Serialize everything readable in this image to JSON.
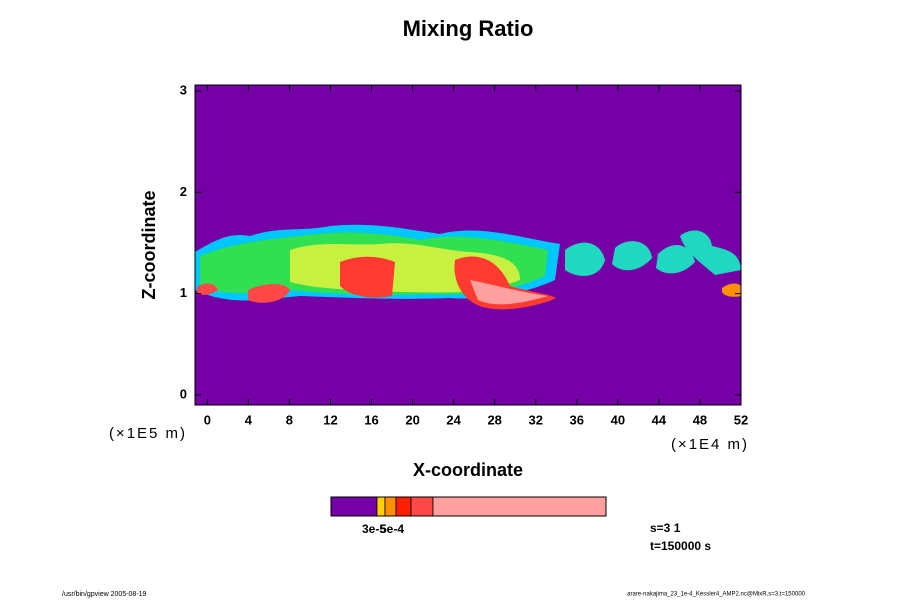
{
  "chart_data": {
    "type": "contour",
    "title": "Mixing Ratio",
    "x_label": "X-coordinate",
    "y_label": "Z-coordinate",
    "x_unit": "(×1E4 m)",
    "y_unit": "(×1E5 m)",
    "xlim": [
      -1.2,
      52
    ],
    "ylim": [
      -0.1,
      3.06
    ],
    "xticks": [
      0,
      4,
      8,
      12,
      16,
      20,
      24,
      28,
      32,
      36,
      40,
      44,
      48,
      52
    ],
    "yticks": [
      0,
      1,
      2,
      3
    ],
    "background_color": "#7400a6",
    "colorbar": {
      "colors": [
        "#7400a6",
        "#ffd000",
        "#ff9000",
        "#ff2000",
        "#ff4848",
        "#ffa0a0"
      ],
      "labels": [
        "3e-5",
        "5e-4"
      ]
    },
    "info": [
      "s=3 1",
      "t=150000 s"
    ],
    "footer_left": "/usr/bin/gpview 2005-08-19",
    "footer_right": "arare-nakajima_23_1e-4_Kessler4_AMP2.nc@MixR,s=3,t=150000"
  }
}
